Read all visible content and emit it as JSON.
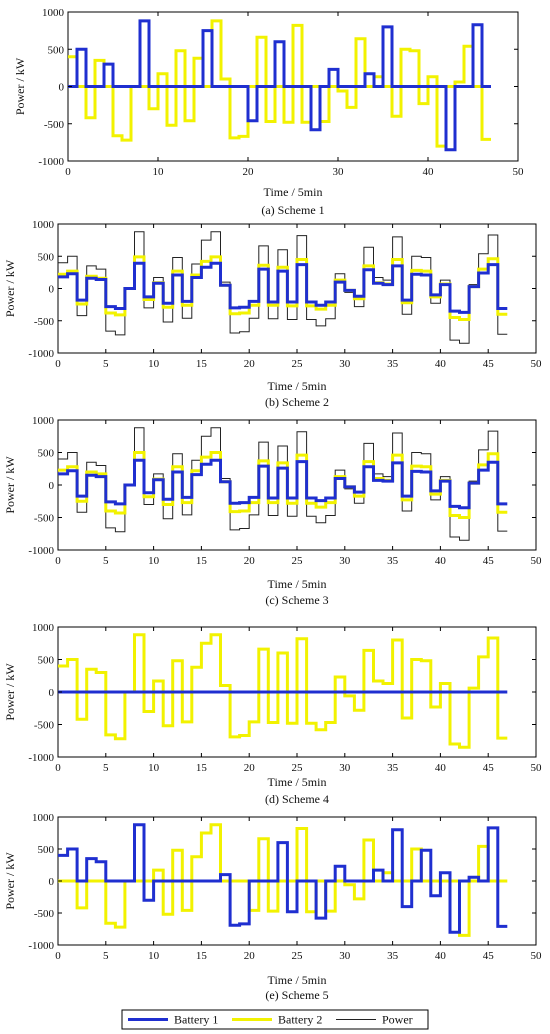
{
  "power": [
    400,
    500,
    -420,
    350,
    300,
    -660,
    -720,
    0,
    880,
    -300,
    170,
    -520,
    480,
    -460,
    380,
    750,
    880,
    100,
    -690,
    -670,
    -460,
    660,
    -470,
    600,
    -480,
    820,
    -480,
    -580,
    -470,
    230,
    -60,
    -280,
    640,
    170,
    130,
    800,
    -400,
    500,
    480,
    -230,
    130,
    -800,
    -850,
    60,
    540,
    830,
    -710
  ],
  "chart_data": [
    {
      "type": "line",
      "caption": "(a) Scheme 1",
      "xlabel": "Time / 5min",
      "ylabel": "Power / kW",
      "xlim": [
        0,
        50
      ],
      "ylim": [
        -1000,
        1000
      ],
      "xticks": [
        "0",
        "10",
        "20",
        "30",
        "40",
        "50"
      ],
      "yticks": [
        "1000",
        "500",
        "0",
        "-500",
        "-1000"
      ],
      "series": [
        {
          "name": "Battery 1",
          "values": [
            0,
            500,
            0,
            0,
            300,
            0,
            0,
            0,
            880,
            0,
            0,
            0,
            0,
            0,
            0,
            750,
            0,
            0,
            0,
            0,
            -460,
            0,
            0,
            600,
            0,
            0,
            0,
            -580,
            0,
            230,
            0,
            0,
            0,
            170,
            0,
            800,
            0,
            0,
            0,
            0,
            0,
            0,
            -850,
            0,
            0,
            830,
            0
          ]
        },
        {
          "name": "Battery 2",
          "values": [
            400,
            0,
            -420,
            350,
            0,
            -660,
            -720,
            0,
            0,
            -300,
            170,
            -520,
            480,
            -460,
            380,
            0,
            880,
            100,
            -690,
            -670,
            0,
            660,
            -470,
            0,
            -480,
            820,
            -480,
            0,
            -470,
            0,
            -60,
            -280,
            640,
            0,
            130,
            0,
            -400,
            500,
            480,
            -230,
            130,
            -800,
            0,
            60,
            540,
            0,
            -710
          ]
        }
      ]
    },
    {
      "type": "line",
      "caption": "(b) Scheme 2",
      "xlabel": "Time / 5min",
      "ylabel": "Power / kW",
      "xlim": [
        0,
        50
      ],
      "ylim": [
        -1000,
        1000
      ],
      "xticks": [
        "0",
        "5",
        "10",
        "15",
        "20",
        "25",
        "30",
        "35",
        "40",
        "45",
        "50"
      ],
      "yticks": [
        "1000",
        "500",
        "0",
        "-500",
        "-1000"
      ],
      "series": [
        {
          "name": "Battery 1",
          "values": [
            180,
            230,
            -180,
            160,
            140,
            -280,
            -310,
            0,
            390,
            -130,
            80,
            -230,
            210,
            -200,
            170,
            330,
            390,
            50,
            -300,
            -290,
            -200,
            300,
            -210,
            270,
            -210,
            370,
            -210,
            -260,
            -210,
            100,
            -30,
            -120,
            290,
            80,
            60,
            350,
            -180,
            220,
            210,
            -100,
            60,
            -350,
            -370,
            30,
            240,
            370,
            -310
          ]
        },
        {
          "name": "Battery 2",
          "values": [
            220,
            270,
            -240,
            190,
            160,
            -380,
            -410,
            0,
            490,
            -170,
            90,
            -290,
            270,
            -260,
            210,
            420,
            490,
            50,
            -390,
            -380,
            -260,
            360,
            -260,
            330,
            -270,
            450,
            -270,
            -320,
            -260,
            130,
            -30,
            -160,
            350,
            90,
            70,
            450,
            -220,
            280,
            270,
            -130,
            70,
            -450,
            -480,
            30,
            300,
            460,
            -400
          ]
        },
        {
          "name": "Power",
          "values": [
            400,
            500,
            -420,
            350,
            300,
            -660,
            -720,
            0,
            880,
            -300,
            170,
            -520,
            480,
            -460,
            380,
            750,
            880,
            100,
            -690,
            -670,
            -460,
            660,
            -470,
            600,
            -480,
            820,
            -480,
            -580,
            -470,
            230,
            -60,
            -280,
            640,
            170,
            130,
            800,
            -400,
            500,
            480,
            -230,
            130,
            -800,
            -850,
            60,
            540,
            830,
            -710
          ]
        }
      ]
    },
    {
      "type": "line",
      "caption": "(c) Scheme 3",
      "xlabel": "Time / 5min",
      "ylabel": "Power / kW",
      "xlim": [
        0,
        50
      ],
      "ylim": [
        -1000,
        1000
      ],
      "xticks": [
        "0",
        "5",
        "10",
        "15",
        "20",
        "25",
        "30",
        "35",
        "40",
        "45",
        "50"
      ],
      "yticks": [
        "1000",
        "500",
        "0",
        "-500",
        "-1000"
      ],
      "series": [
        {
          "name": "Battery 1",
          "values": [
            170,
            220,
            -170,
            150,
            130,
            -260,
            -290,
            0,
            380,
            -120,
            80,
            -220,
            200,
            -190,
            160,
            320,
            380,
            50,
            -280,
            -270,
            -190,
            290,
            -200,
            260,
            -200,
            360,
            -200,
            -240,
            -200,
            100,
            -30,
            -110,
            280,
            70,
            60,
            340,
            -170,
            210,
            200,
            -90,
            60,
            -330,
            -350,
            30,
            230,
            350,
            -290
          ]
        },
        {
          "name": "Battery 2",
          "values": [
            230,
            280,
            -250,
            200,
            170,
            -400,
            -430,
            0,
            500,
            -180,
            90,
            -300,
            280,
            -270,
            220,
            430,
            500,
            50,
            -410,
            -400,
            -270,
            370,
            -270,
            340,
            -280,
            460,
            -280,
            -340,
            -270,
            130,
            -30,
            -170,
            360,
            100,
            70,
            460,
            -230,
            290,
            280,
            -140,
            70,
            -470,
            -500,
            30,
            310,
            480,
            -420
          ]
        },
        {
          "name": "Power",
          "values": [
            400,
            500,
            -420,
            350,
            300,
            -660,
            -720,
            0,
            880,
            -300,
            170,
            -520,
            480,
            -460,
            380,
            750,
            880,
            100,
            -690,
            -670,
            -460,
            660,
            -470,
            600,
            -480,
            820,
            -480,
            -580,
            -470,
            230,
            -60,
            -280,
            640,
            170,
            130,
            800,
            -400,
            500,
            480,
            -230,
            130,
            -800,
            -850,
            60,
            540,
            830,
            -710
          ]
        }
      ]
    },
    {
      "type": "line",
      "caption": "(d) Scheme 4",
      "xlabel": "Time / 5min",
      "ylabel": "Power / kW",
      "xlim": [
        0,
        50
      ],
      "ylim": [
        -1000,
        1000
      ],
      "xticks": [
        "0",
        "5",
        "10",
        "15",
        "20",
        "25",
        "30",
        "35",
        "40",
        "45",
        "50"
      ],
      "yticks": [
        "1000",
        "500",
        "0",
        "-500",
        "-1000"
      ],
      "series": [
        {
          "name": "Battery 1",
          "values": [
            0,
            0,
            0,
            0,
            0,
            0,
            0,
            0,
            0,
            0,
            0,
            0,
            0,
            0,
            0,
            0,
            0,
            0,
            0,
            0,
            0,
            0,
            0,
            0,
            0,
            0,
            0,
            0,
            0,
            0,
            0,
            0,
            0,
            0,
            0,
            0,
            0,
            0,
            0,
            0,
            0,
            0,
            0,
            0,
            0,
            0,
            0
          ]
        },
        {
          "name": "Battery 2",
          "values": [
            400,
            500,
            -420,
            350,
            300,
            -660,
            -720,
            0,
            880,
            -300,
            170,
            -520,
            480,
            -460,
            380,
            750,
            880,
            100,
            -690,
            -670,
            -460,
            660,
            -470,
            600,
            -480,
            820,
            -480,
            -580,
            -470,
            230,
            -60,
            -280,
            640,
            170,
            130,
            800,
            -400,
            500,
            480,
            -230,
            130,
            -800,
            -850,
            60,
            540,
            830,
            -710
          ]
        }
      ]
    },
    {
      "type": "line",
      "caption": "(e) Scheme 5",
      "xlabel": "Time / 5min",
      "ylabel": "Power / kW",
      "xlim": [
        0,
        50
      ],
      "ylim": [
        -1000,
        1000
      ],
      "xticks": [
        "0",
        "5",
        "10",
        "15",
        "20",
        "25",
        "30",
        "35",
        "40",
        "45",
        "50"
      ],
      "yticks": [
        "1000",
        "500",
        "0",
        "-500",
        "-1000"
      ],
      "series": [
        {
          "name": "Battery 1",
          "values": [
            400,
            500,
            0,
            350,
            300,
            0,
            0,
            0,
            880,
            -300,
            0,
            0,
            0,
            0,
            0,
            0,
            0,
            100,
            -690,
            -670,
            0,
            0,
            0,
            600,
            -480,
            0,
            0,
            -580,
            0,
            230,
            0,
            0,
            0,
            170,
            0,
            800,
            -400,
            0,
            480,
            -230,
            130,
            -800,
            0,
            60,
            0,
            830,
            -710
          ]
        },
        {
          "name": "Battery 2",
          "values": [
            0,
            0,
            -420,
            0,
            0,
            -660,
            -720,
            0,
            0,
            0,
            170,
            -520,
            480,
            -460,
            380,
            750,
            880,
            0,
            0,
            0,
            -460,
            660,
            -470,
            0,
            0,
            820,
            -480,
            0,
            -470,
            0,
            -60,
            -280,
            640,
            0,
            130,
            0,
            0,
            500,
            0,
            0,
            0,
            0,
            -850,
            0,
            540,
            0,
            0
          ]
        }
      ]
    }
  ],
  "legend": {
    "items": [
      {
        "label": "Battery 1",
        "color": "#1f2fd0"
      },
      {
        "label": "Battery 2",
        "color": "#f2f200"
      },
      {
        "label": "Power",
        "color": "#222222"
      }
    ]
  },
  "colors": {
    "battery1": "#1f2fd0",
    "battery2": "#f2f200",
    "power": "#222222",
    "axis": "#000000"
  }
}
